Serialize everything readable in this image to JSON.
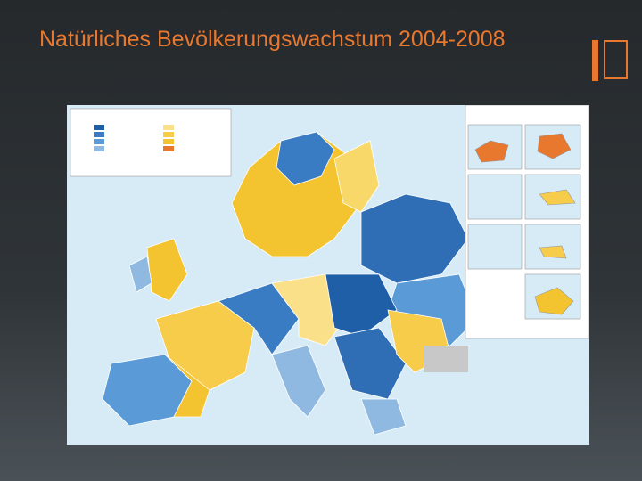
{
  "slide": {
    "title": "Natürliches Bevölkerungswachstum 2004-2008"
  }
}
